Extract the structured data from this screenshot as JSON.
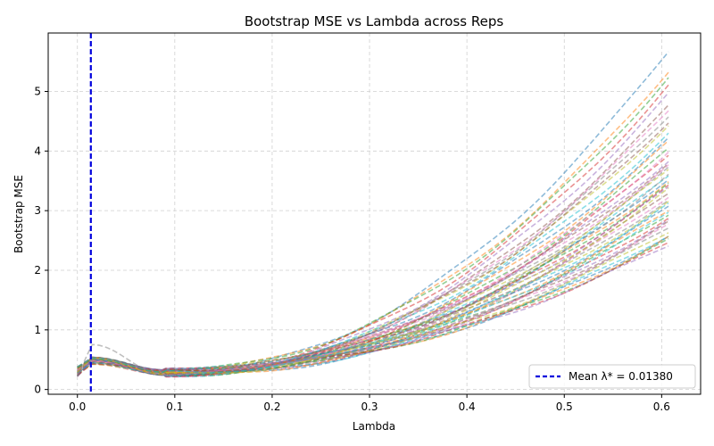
{
  "chart_data": {
    "type": "line",
    "title": "Bootstrap MSE vs Lambda across Reps",
    "xlabel": "Lambda",
    "ylabel": "Bootstrap MSE",
    "xlim": [
      -0.03,
      0.64
    ],
    "ylim": [
      -0.08,
      5.98
    ],
    "x_ticks": [
      0.0,
      0.1,
      0.2,
      0.3,
      0.4,
      0.5,
      0.6
    ],
    "x_tick_labels": [
      "0.0",
      "0.1",
      "0.2",
      "0.3",
      "0.4",
      "0.5",
      "0.6"
    ],
    "y_ticks": [
      0,
      1,
      2,
      3,
      4,
      5
    ],
    "y_tick_labels": [
      "0",
      "1",
      "2",
      "3",
      "4",
      "5"
    ],
    "grid": true,
    "grid_style": "dashed",
    "line_style": "dashed",
    "line_alpha": 0.5,
    "n_reps": 50,
    "x_max": 0.607,
    "series_colors": [
      "#1f77b4",
      "#ff7f0e",
      "#2ca02c",
      "#d62728",
      "#9467bd",
      "#8c564b",
      "#e377c2",
      "#7f7f7f",
      "#bcbd22",
      "#17becf"
    ],
    "series_final_values": [
      5.68,
      5.35,
      5.25,
      5.1,
      4.95,
      4.75,
      4.68,
      4.6,
      4.45,
      4.3,
      4.2,
      4.15,
      4.05,
      3.95,
      3.85,
      3.8,
      3.75,
      3.7,
      3.68,
      3.6,
      3.55,
      3.5,
      3.45,
      3.4,
      3.38,
      3.3,
      3.25,
      3.2,
      3.15,
      3.1,
      3.05,
      3.0,
      2.95,
      2.9,
      2.85,
      2.8,
      2.75,
      2.7,
      2.65,
      2.6,
      2.58,
      2.55,
      2.5,
      2.45,
      2.42,
      4.5,
      4.0,
      3.6,
      3.35,
      2.95
    ],
    "vline": {
      "x": 0.0138,
      "color": "#0000dd",
      "label": "Mean λ* = 0.01380"
    },
    "legend": {
      "position": "lower-right",
      "label": "Mean λ* = 0.01380"
    }
  }
}
